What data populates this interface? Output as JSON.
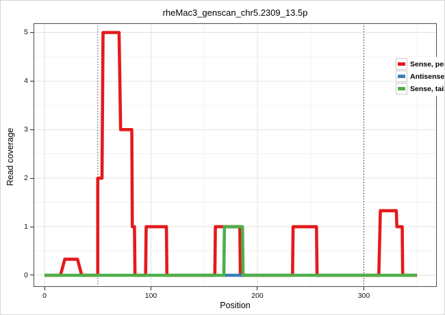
{
  "figure": {
    "background": "#ffffff",
    "border_color": "#d6d6d6",
    "panel_border_color": "#4a4a4a",
    "grid_major_color": "#e2e2e2",
    "grid_minor_color": "#f0f0f0",
    "tick_color": "#222222",
    "text_color": "#000000"
  },
  "chart_data": {
    "type": "line",
    "title": "rheMac3_genscan_chr5.2309_13.5p",
    "xlabel": "Position",
    "ylabel": "Read coverage",
    "xlim": [
      -10.3,
      368.5
    ],
    "ylim": [
      -0.24,
      5.19
    ],
    "x_ticks": [
      0,
      100,
      200,
      300
    ],
    "y_ticks": [
      0,
      1,
      2,
      3,
      4,
      5
    ],
    "grid": {
      "major_x": [
        0,
        100,
        200,
        300
      ],
      "minor_x": [
        50,
        150,
        250,
        350
      ],
      "major_y": [
        0,
        1,
        2,
        3,
        4,
        5
      ],
      "minor_y": [
        0.5,
        1.5,
        2.5,
        3.5,
        4.5
      ]
    },
    "vlines": {
      "positions": [
        50,
        300
      ],
      "color": "#000000",
      "style": "dotted"
    },
    "legend_position": "top-right-inside",
    "series": [
      {
        "name": "Sense, perfect",
        "color": "#E41A1C",
        "points": [
          [
            0,
            0
          ],
          [
            15,
            0
          ],
          [
            19,
            0.33
          ],
          [
            31,
            0.33
          ],
          [
            35,
            0
          ],
          [
            50,
            0
          ],
          [
            50,
            2
          ],
          [
            54,
            2
          ],
          [
            55,
            5
          ],
          [
            70,
            5
          ],
          [
            71.5,
            3
          ],
          [
            82,
            3
          ],
          [
            82.5,
            1
          ],
          [
            84.5,
            1
          ],
          [
            85,
            0
          ],
          [
            95,
            0
          ],
          [
            95.5,
            1
          ],
          [
            114.5,
            1
          ],
          [
            115,
            0
          ],
          [
            160,
            0
          ],
          [
            160.5,
            1
          ],
          [
            183.5,
            1
          ],
          [
            184,
            0
          ],
          [
            233,
            0
          ],
          [
            233.5,
            1
          ],
          [
            255.5,
            1
          ],
          [
            256,
            0
          ],
          [
            314,
            0
          ],
          [
            315.5,
            1.33
          ],
          [
            330.5,
            1.33
          ],
          [
            331,
            1
          ],
          [
            336,
            1
          ],
          [
            336.5,
            0
          ],
          [
            350,
            0
          ]
        ]
      },
      {
        "name": "Antisense",
        "color": "#377EB8",
        "points": [
          [
            167,
            0
          ],
          [
            187,
            0
          ]
        ]
      },
      {
        "name": "Sense, tailed",
        "color": "#4DAF4A",
        "points": [
          [
            0,
            0
          ],
          [
            168.5,
            0
          ],
          [
            169,
            1
          ],
          [
            186,
            1
          ],
          [
            186.5,
            0
          ],
          [
            350,
            0
          ]
        ]
      }
    ]
  }
}
